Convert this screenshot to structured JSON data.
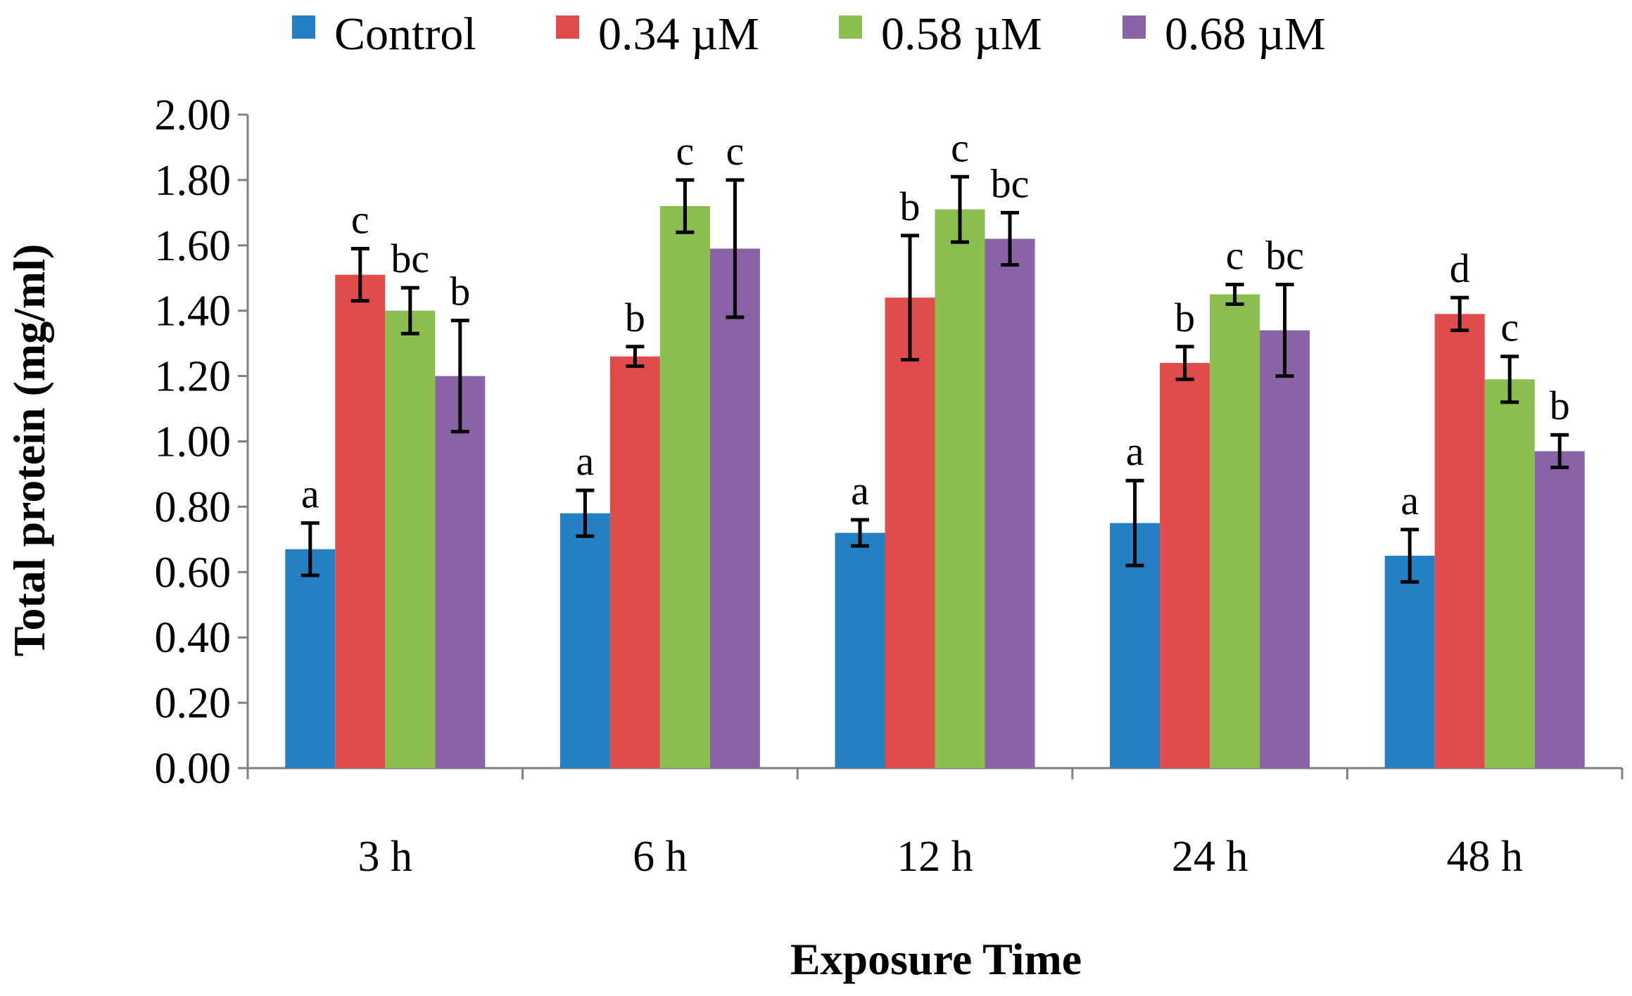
{
  "chart_data": {
    "type": "bar",
    "title": "",
    "xlabel": "Exposure Time",
    "ylabel": "Total protein (mg/ml)",
    "ylim": [
      0,
      2
    ],
    "yticks": [
      "0.00",
      "0.20",
      "0.40",
      "0.60",
      "0.80",
      "1.00",
      "1.20",
      "1.40",
      "1.60",
      "1.80",
      "2.00"
    ],
    "grid": false,
    "legend": "top",
    "categories": [
      "3 h",
      "6 h",
      "12 h",
      "24 h",
      "48 h"
    ],
    "series": [
      {
        "name": "Control",
        "color": "#2580c3",
        "values": [
          0.67,
          0.78,
          0.72,
          0.75,
          0.65
        ],
        "errors": [
          0.08,
          0.07,
          0.04,
          0.13,
          0.08
        ],
        "labels": [
          "a",
          "a",
          "a",
          "a",
          "a"
        ]
      },
      {
        "name": "0.34 µM",
        "color": "#e04c4b",
        "values": [
          1.51,
          1.26,
          1.44,
          1.24,
          1.39
        ],
        "errors": [
          0.08,
          0.03,
          0.19,
          0.05,
          0.05
        ],
        "labels": [
          "c",
          "b",
          "b",
          "b",
          "d"
        ]
      },
      {
        "name": "0.58 µM",
        "color": "#8cbd4f",
        "values": [
          1.4,
          1.72,
          1.71,
          1.45,
          1.19
        ],
        "errors": [
          0.07,
          0.08,
          0.1,
          0.03,
          0.07
        ],
        "labels": [
          "bc",
          "c",
          "c",
          "c",
          "c"
        ]
      },
      {
        "name": "0.68 µM",
        "color": "#8a63a6",
        "values": [
          1.2,
          1.59,
          1.62,
          1.34,
          0.97
        ],
        "errors": [
          0.17,
          0.21,
          0.08,
          0.14,
          0.05
        ],
        "labels": [
          "b",
          "c",
          "bc",
          "bc",
          "b"
        ]
      }
    ]
  }
}
